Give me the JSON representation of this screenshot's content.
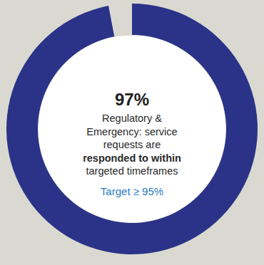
{
  "chart_data": {
    "type": "donut",
    "values": [
      97,
      3
    ],
    "value_labels": [
      "97%",
      null
    ],
    "color": "#2b3388",
    "data_labels": true,
    "annotation": [
      "Regulatory &",
      "Emergency: service",
      "requests are",
      "responded to within",
      "targeted timeframes"
    ],
    "subtitle": "Target ≥ 95%"
  }
}
